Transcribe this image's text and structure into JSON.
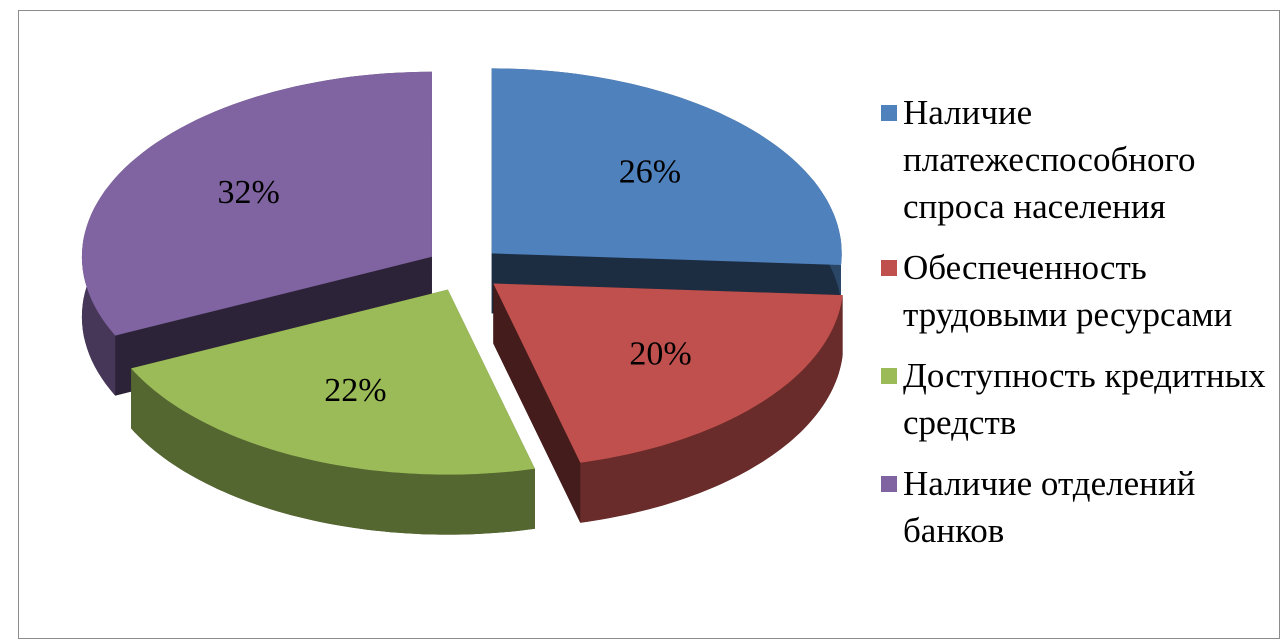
{
  "chart_data": {
    "type": "pie",
    "categories": [
      "Наличие платежеспособного спроса населения",
      "Обеспеченность трудовыми ресурсами",
      "Доступность кредитных средств",
      "Наличие отделений банков"
    ],
    "values": [
      26,
      20,
      22,
      32
    ],
    "value_labels": [
      "26%",
      "20%",
      "22%",
      "32%"
    ],
    "colors": [
      "#4f81bd",
      "#c0504d",
      "#9bbb59",
      "#8064a2"
    ],
    "legend": "right"
  }
}
